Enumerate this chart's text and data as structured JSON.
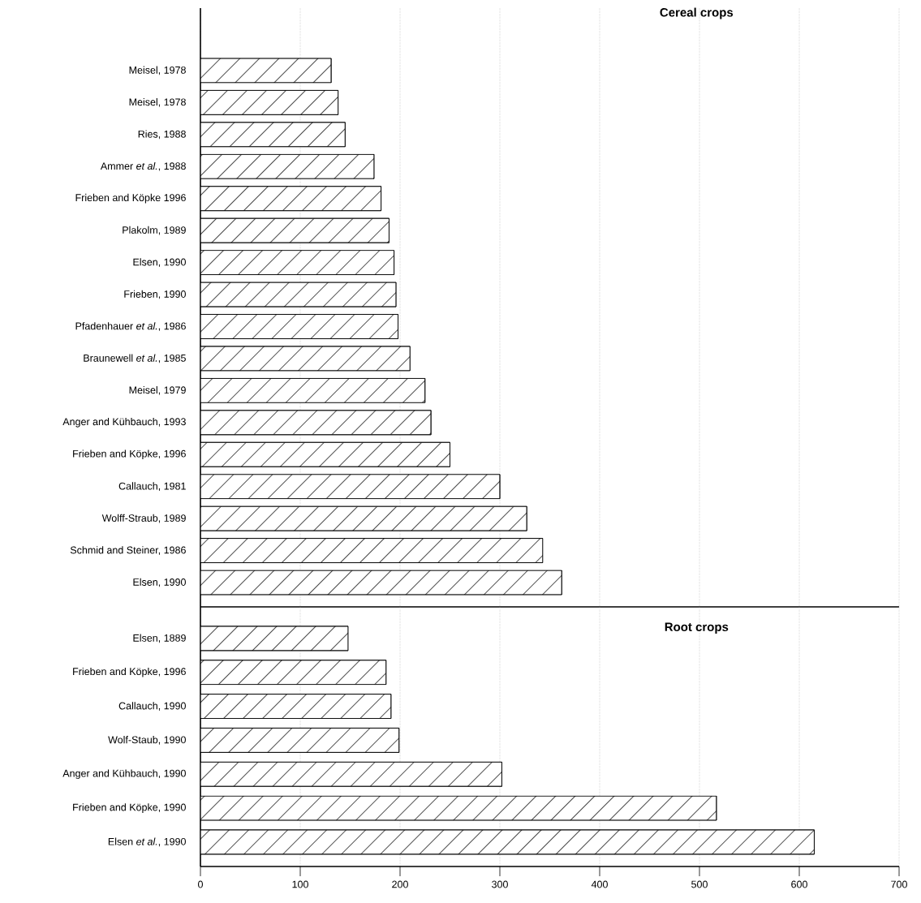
{
  "chart_data": [
    {
      "type": "bar",
      "orientation": "horizontal",
      "title": "Cereal crops",
      "categories": [
        "Meisel, 1978",
        "Meisel, 1978",
        "Ries, 1988",
        "Ammer *et al.*, 1988",
        "Frieben and Köpke 1996",
        "Plakolm, 1989",
        "Elsen, 1990",
        "Frieben, 1990",
        "Pfadenhauer *et al.*, 1986",
        "Braunewell *et al.*, 1985",
        "Meisel, 1979",
        "Anger and Kühbauch, 1993",
        "Frieben and Köpke, 1996",
        "Callauch, 1981",
        "Wolff-Straub, 1989",
        "Schmid and Steiner, 1986",
        "Elsen, 1990"
      ],
      "values": [
        131,
        138,
        145,
        174,
        181,
        189,
        194,
        196,
        198,
        210,
        225,
        231,
        250,
        300,
        327,
        343,
        362
      ],
      "color": "#ffffff",
      "xlim": [
        0,
        700
      ],
      "xticks": [
        0,
        100,
        200,
        300,
        400,
        500,
        600,
        700
      ],
      "grid": "x",
      "tick_labels": "y"
    },
    {
      "type": "bar",
      "orientation": "horizontal",
      "title": "Root crops",
      "categories": [
        "Elsen, 1889",
        "Frieben and Köpke, 1996",
        "Callauch, 1990",
        "Wolf-Staub, 1990",
        "Anger and Kühbauch, 1990",
        "Frieben and Köpke, 1990",
        "Elsen *et al.*, 1990"
      ],
      "values": [
        148,
        186,
        191,
        199,
        302,
        517,
        615
      ],
      "color": "#ffffff",
      "xlim": [
        0,
        700
      ],
      "xticks": [
        0,
        100,
        200,
        300,
        400,
        500,
        600,
        700
      ],
      "grid": "x"
    }
  ]
}
